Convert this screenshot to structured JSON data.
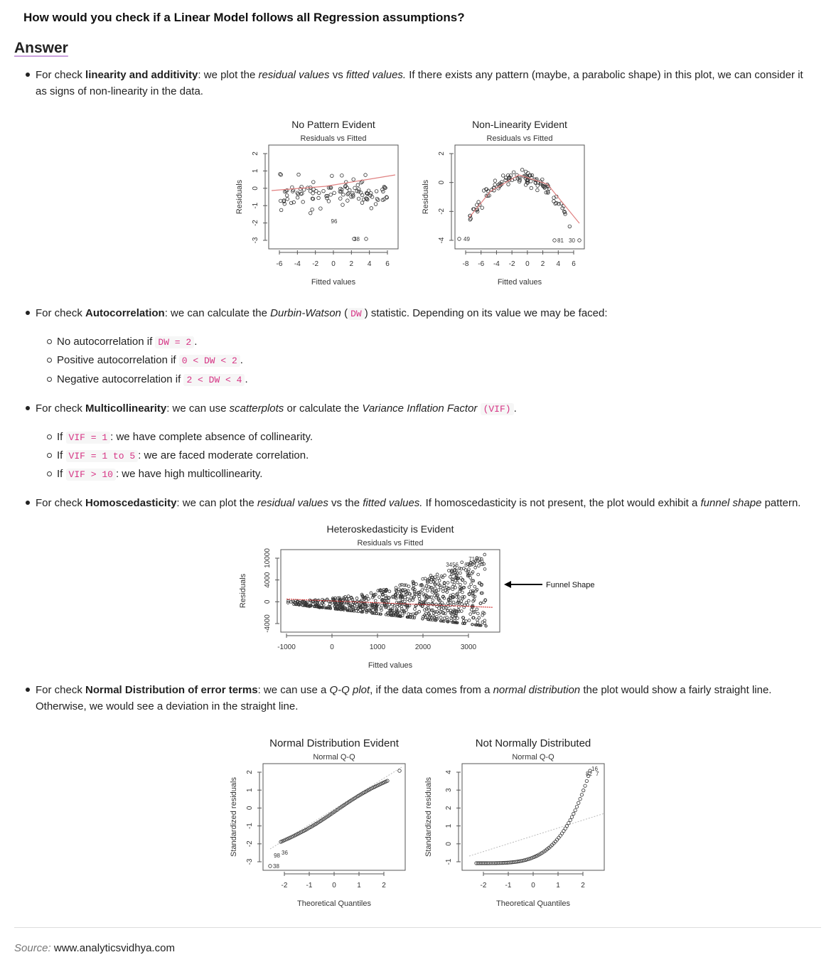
{
  "question": "How would you check if a Linear Model follows all Regression assumptions?",
  "answer_heading": "Answer",
  "linearity": {
    "prefix": "For check ",
    "strong": "linearity and additivity",
    "t1": ": we plot the ",
    "em1": "residual values",
    "t2": " vs ",
    "em2": "fitted values.",
    "t3": " If there exists any pattern (maybe, a parabolic shape) in this plot, we can consider it",
    "line2": "as signs of non-linearity in the data."
  },
  "figure1": {
    "left": {
      "title": "No Pattern Evident",
      "subtitle": "Residuals vs Fitted",
      "xlabel": "Fitted values",
      "ylabel": "Residuals",
      "xticks": [
        "-6",
        "-4",
        "-2",
        "0",
        "2",
        "4",
        "6"
      ],
      "yticks": [
        "2",
        "1",
        "0",
        "-1",
        "-2",
        "-3"
      ],
      "labels": [
        "38",
        "38",
        "96"
      ]
    },
    "right": {
      "title": "Non-Linearity Evident",
      "subtitle": "Residuals vs Fitted",
      "xlabel": "Fitted values",
      "ylabel": "Residuals",
      "xticks": [
        "-8",
        "-6",
        "-4",
        "-2",
        "0",
        "2",
        "4",
        "6"
      ],
      "yticks": [
        "2",
        "0",
        "-2",
        "-4"
      ],
      "labels": [
        "49",
        "81",
        "30"
      ]
    }
  },
  "autocorrelation": {
    "prefix": "For check ",
    "strong": "Autocorrelation",
    "t1": ": we can calculate the ",
    "em1": "Durbin-Watson",
    "t2": " (",
    "code": "DW",
    "t3": ") statistic. Depending on its value we may be faced:",
    "items": [
      {
        "text": "No autocorrelation if ",
        "code": "DW = 2",
        "end": "."
      },
      {
        "text": "Positive autocorrelation if ",
        "code": "0 < DW < 2",
        "end": "."
      },
      {
        "text": "Negative autocorrelation if ",
        "code": "2 < DW < 4",
        "end": "."
      }
    ]
  },
  "multicollinearity": {
    "prefix": "For check ",
    "strong": "Multicollinearity",
    "t1": ": we can use ",
    "em1": "scatterplots",
    "t2": " or calculate the ",
    "em2": "Variance Inflation Factor",
    "code": "(VIF)",
    "t3": ".",
    "items": [
      {
        "text": "If ",
        "code": "VIF = 1",
        "end": ": we have complete absence of collinearity."
      },
      {
        "text": "If ",
        "code": "VIF = 1 to 5",
        "end": ": we are faced moderate correlation."
      },
      {
        "text": "If ",
        "code": "VIF > 10",
        "end": ": we have high multicollinearity."
      }
    ]
  },
  "homoscedasticity": {
    "prefix": "For check ",
    "strong": "Homoscedasticity",
    "t1": ": we can plot the ",
    "em1": "residual values",
    "t2": " vs the ",
    "em2": "fitted values.",
    "t3": " If homoscedasticity is not present, the plot would exhibit a ",
    "em3": "funnel shape",
    "t4": " pattern."
  },
  "figure2": {
    "title": "Heteroskedasticity is Evident",
    "subtitle": "Residuals vs Fitted",
    "xlabel": "Fitted values",
    "ylabel": "Residuals",
    "xticks": [
      "-1000",
      "0",
      "1000",
      "2000",
      "3000"
    ],
    "yticks": [
      "10000",
      "4000",
      "0",
      "-4000"
    ],
    "labels": [
      "7160",
      "3456",
      "6871"
    ],
    "annotation": "Funnel Shape"
  },
  "normality": {
    "prefix": "For check ",
    "strong": "Normal Distribution of error terms",
    "t1": ": we can use a ",
    "em1": "Q-Q plot",
    "t2": ", if the data comes from a ",
    "em2": "normal distribution",
    "t3": " the plot would show a fairly straight line.",
    "line2": "Otherwise, we would see a deviation in the straight line."
  },
  "figure3": {
    "left": {
      "title": "Normal Distribution Evident",
      "subtitle": "Normal Q-Q",
      "xlabel": "Theoretical Quantiles",
      "ylabel": "Standardized residuals",
      "xticks": [
        "-2",
        "-1",
        "0",
        "1",
        "2"
      ],
      "yticks": [
        "2",
        "1",
        "0",
        "-1",
        "-2",
        "-3"
      ],
      "labels": [
        "98",
        "36",
        "38"
      ]
    },
    "right": {
      "title": "Not Normally Distributed",
      "subtitle": "Normal Q-Q",
      "xlabel": "Theoretical Quantiles",
      "ylabel": "Standardized residuals",
      "xticks": [
        "-2",
        "-1",
        "0",
        "1",
        "2"
      ],
      "yticks": [
        "4",
        "3",
        "2",
        "1",
        "0",
        "-1"
      ],
      "labels": [
        "16",
        "82",
        "7"
      ]
    }
  },
  "source": {
    "label": "Source:",
    "value": "www.analyticsvidhya.com"
  }
}
